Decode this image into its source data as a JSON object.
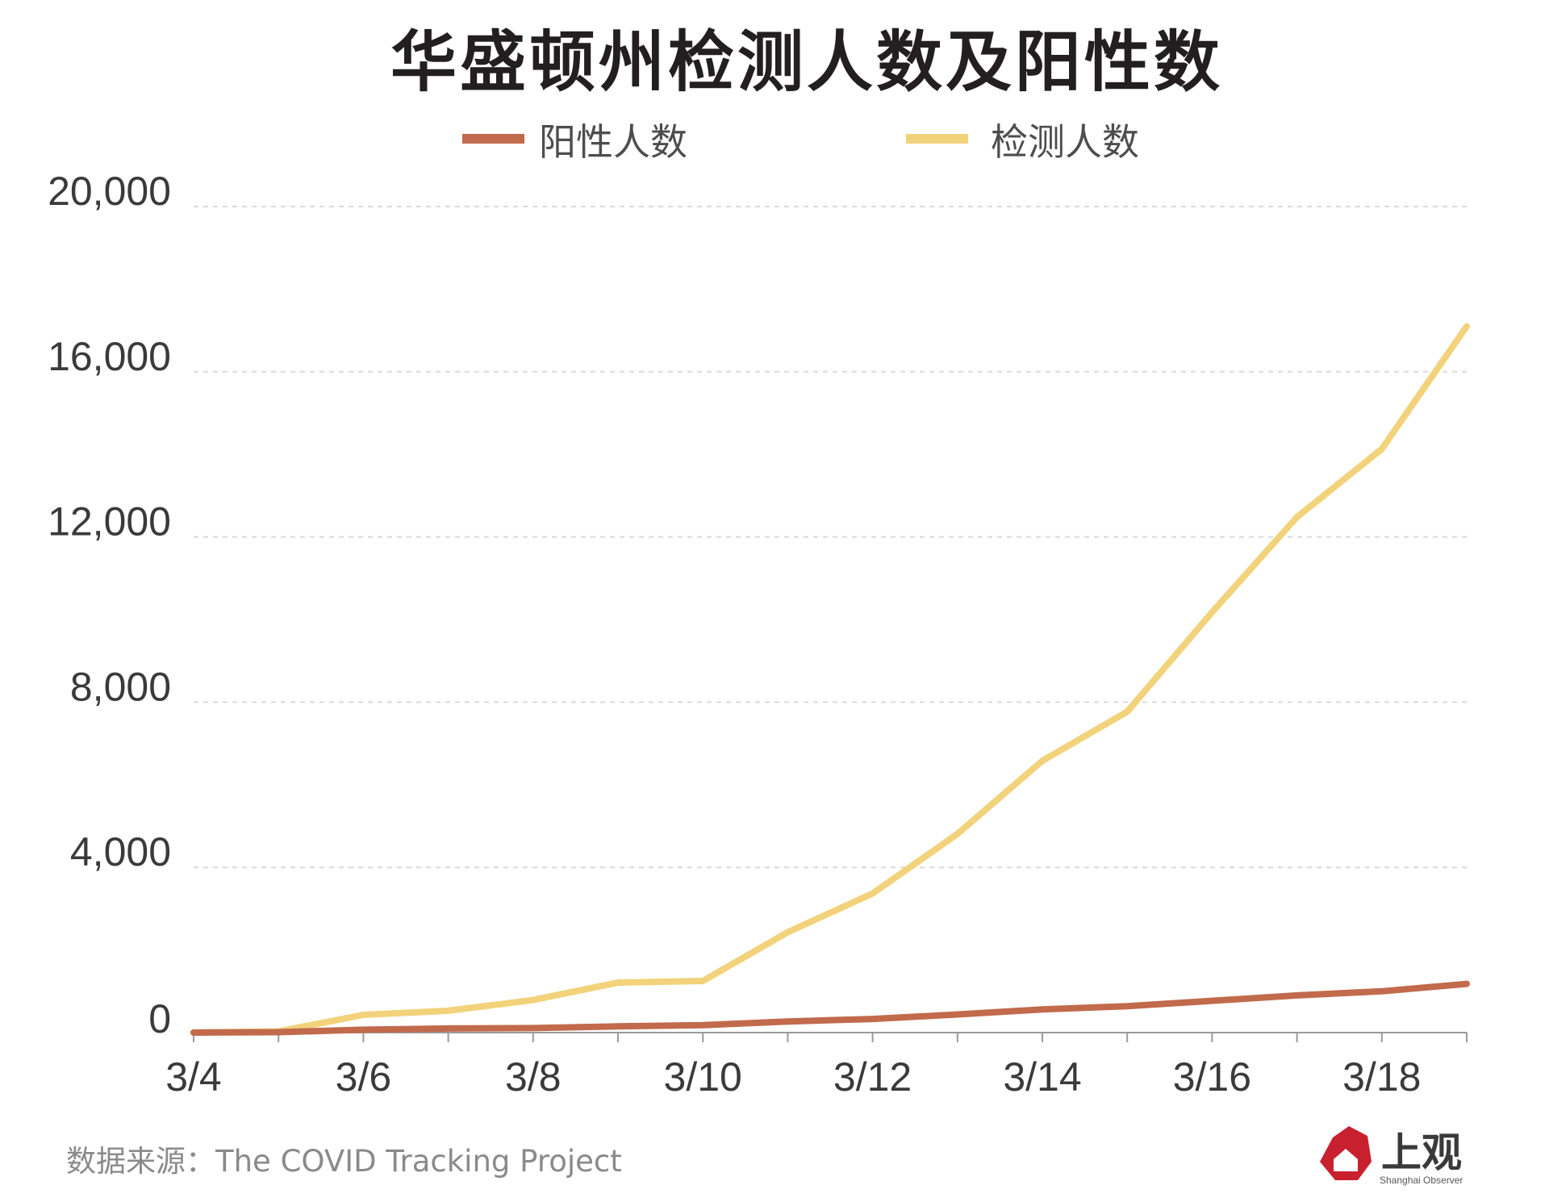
{
  "chart_data": {
    "type": "line",
    "title": "华盛顿州检测人数及阳性数",
    "source": "数据来源：The COVID Tracking Project",
    "brand": {
      "name": "上观",
      "subtitle": "Shanghai Observer",
      "color": "#c8202f"
    },
    "categories": [
      "3/4",
      "3/5",
      "3/6",
      "3/7",
      "3/8",
      "3/9",
      "3/10",
      "3/11",
      "3/12",
      "3/13",
      "3/14",
      "3/15",
      "3/16",
      "3/17",
      "3/18",
      "3/19"
    ],
    "x_tick_labels": [
      "3/4",
      "3/6",
      "3/8",
      "3/10",
      "3/12",
      "3/14",
      "3/16",
      "3/18"
    ],
    "y_tick_labels": [
      "0",
      "4,000",
      "8,000",
      "12,000",
      "16,000",
      "20,000"
    ],
    "y_ticks": [
      0,
      4000,
      8000,
      12000,
      16000,
      20000
    ],
    "ylim": [
      0,
      20000
    ],
    "grid": true,
    "legend_position": "top",
    "series": [
      {
        "name": "阳性人数",
        "color": "#c26a4c",
        "values": [
          0,
          10,
          70,
          100,
          110,
          150,
          180,
          270,
          330,
          440,
          560,
          640,
          770,
          900,
          1000,
          1180
        ]
      },
      {
        "name": "检测人数",
        "color": "#f2d27a",
        "values": [
          0,
          30,
          430,
          530,
          790,
          1210,
          1250,
          2430,
          3370,
          4810,
          6580,
          7770,
          10180,
          12480,
          14130,
          17100
        ]
      }
    ]
  }
}
